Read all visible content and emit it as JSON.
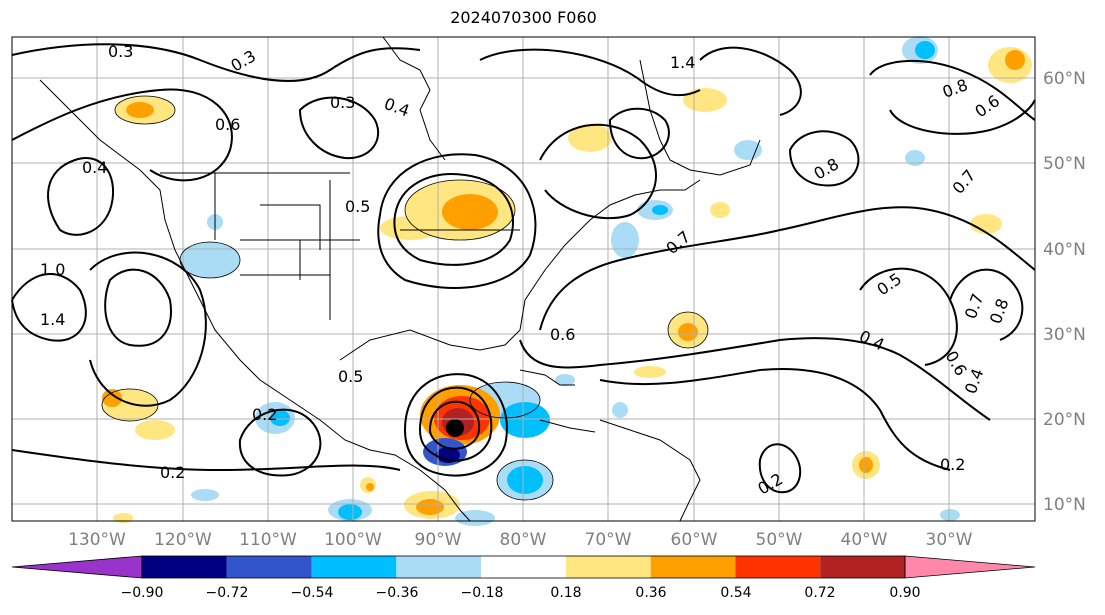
{
  "title": "2024070300 F060",
  "map": {
    "lon_labels": [
      "130°W",
      "120°W",
      "110°W",
      "100°W",
      "90°W",
      "80°W",
      "70°W",
      "60°W",
      "50°W",
      "40°W",
      "30°W"
    ],
    "lat_labels": [
      "60°N",
      "50°N",
      "40°N",
      "30°N",
      "20°N",
      "10°N"
    ],
    "contour_labels": [
      "0.3",
      "0.3",
      "0.3",
      "0.4",
      "0.4",
      "0.5",
      "0.5",
      "0.6",
      "0.6",
      "0.8",
      "0.8",
      "1.0",
      "1.4",
      "1.4",
      "0.2",
      "0.2",
      "0.2",
      "0.7",
      "0.7",
      "0.6",
      "0.4",
      "0.5",
      "0.8",
      "0.7",
      "0.6",
      "0.4",
      "0.2"
    ],
    "label_color": "#808080"
  },
  "colorbar": {
    "tick_labels": [
      "−0.90",
      "−0.72",
      "−0.54",
      "−0.36",
      "−0.18",
      "0.18",
      "0.36",
      "0.54",
      "0.72",
      "0.90"
    ],
    "colors": [
      "#9933cc",
      "#000080",
      "#3355cc",
      "#00bfff",
      "#aadcf5",
      "#ffffff",
      "#ffe680",
      "#ffa000",
      "#ff3300",
      "#b22222",
      "#ff88aa"
    ]
  }
}
